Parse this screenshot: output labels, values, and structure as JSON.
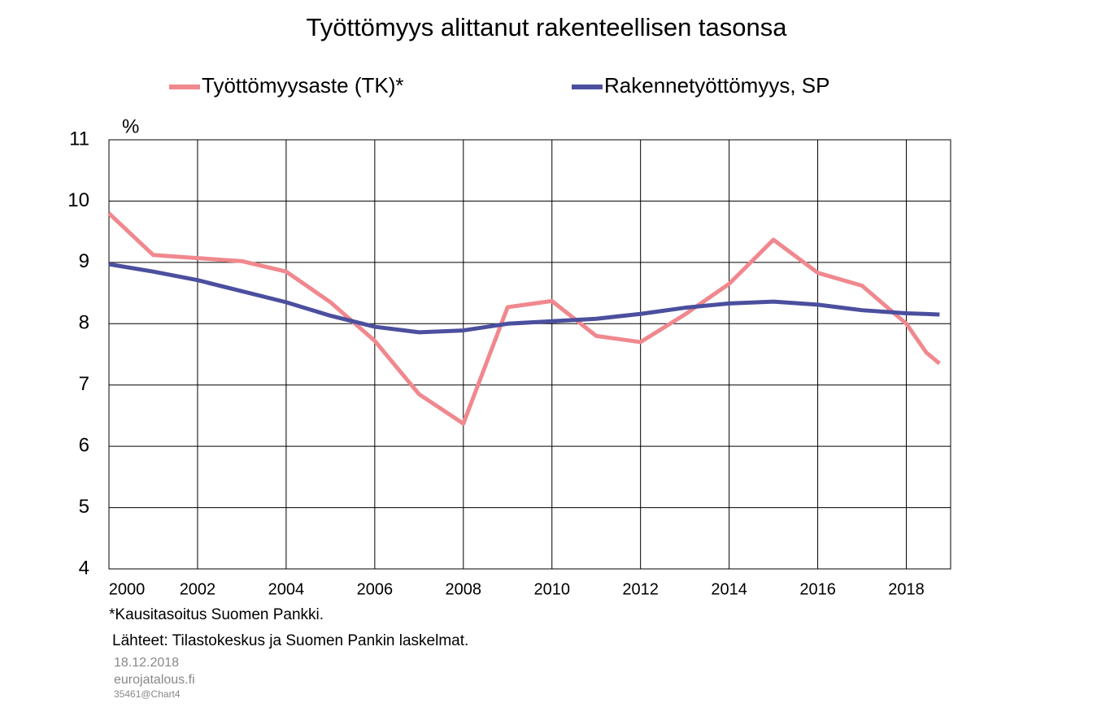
{
  "chart_data": {
    "type": "line",
    "title": "Työttömyys alittanut rakenteellisen tasonsa",
    "y_label": "%",
    "series": [
      {
        "name": "Työttömyysaste (TK)*",
        "color": "#f0888e",
        "x": [
          2000,
          2001,
          2002,
          2003,
          2004,
          2005,
          2006,
          2007,
          2008,
          2009,
          2010,
          2011,
          2012,
          2013,
          2014,
          2015,
          2016,
          2017,
          2018,
          2018.45,
          2018.75
        ],
        "values": [
          9.8,
          9.12,
          9.07,
          9.02,
          8.85,
          8.35,
          7.72,
          6.85,
          6.37,
          8.27,
          8.37,
          7.8,
          7.7,
          8.15,
          8.65,
          9.37,
          8.83,
          8.62,
          8.0,
          7.53,
          7.35
        ]
      },
      {
        "name": "Rakennetyöttömyys, SP",
        "color": "#4b4f9e",
        "x": [
          2000,
          2001,
          2002,
          2003,
          2004,
          2005,
          2006,
          2007,
          2008,
          2009,
          2010,
          2011,
          2012,
          2013,
          2014,
          2015,
          2016,
          2017,
          2018,
          2018.75
        ],
        "values": [
          8.97,
          8.85,
          8.71,
          8.53,
          8.35,
          8.13,
          7.95,
          7.86,
          7.89,
          8.0,
          8.04,
          8.08,
          8.16,
          8.26,
          8.33,
          8.36,
          8.31,
          8.22,
          8.17,
          8.15
        ]
      }
    ],
    "xlim": [
      2000,
      2019
    ],
    "xticks": [
      2000,
      2002,
      2004,
      2006,
      2008,
      2010,
      2012,
      2014,
      2016,
      2018
    ],
    "ylim": [
      4,
      11
    ],
    "yticks": [
      4,
      5,
      6,
      7,
      8,
      9,
      10,
      11
    ],
    "grid": true,
    "notes": [
      "*Kausitasoitus Suomen Pankki.",
      "Lähteet: Tilastokeskus ja Suomen Pankin laskelmat."
    ],
    "date": "18.12.2018",
    "site": "eurojatalous.fi",
    "code": "35461@Chart4"
  }
}
